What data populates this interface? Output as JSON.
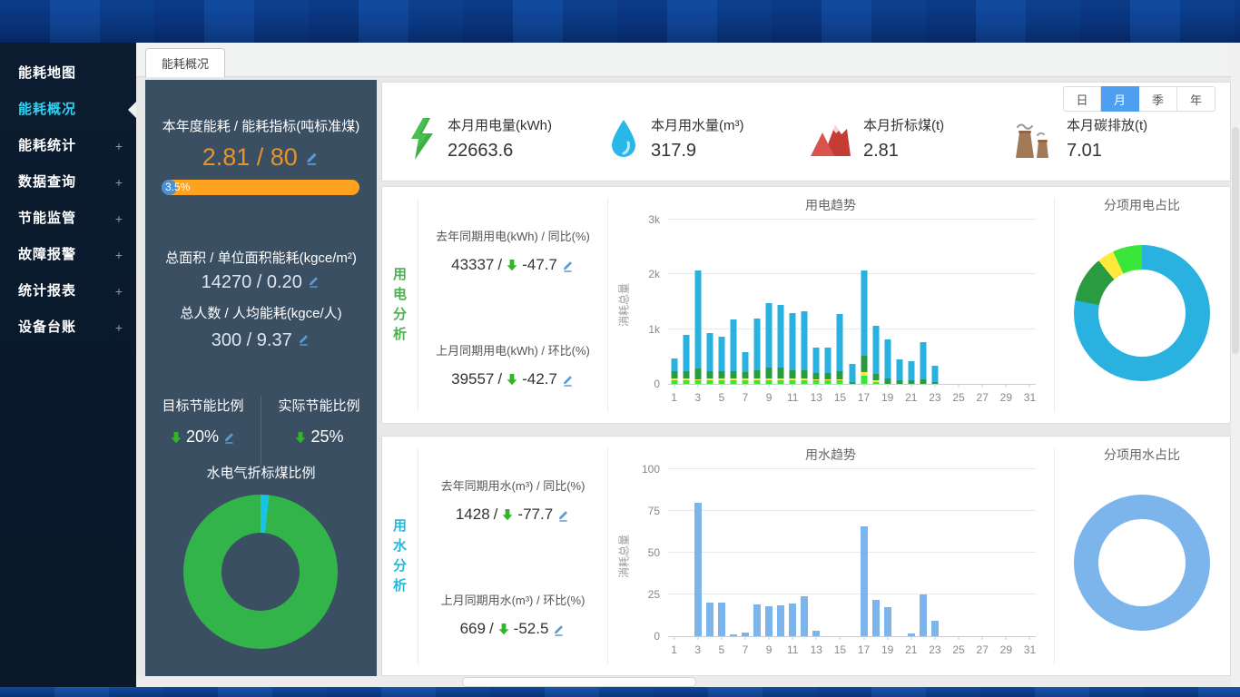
{
  "window": {
    "tab_label": "能耗概况"
  },
  "sidebar": {
    "expand_glyph": "+",
    "items": [
      {
        "label": "能耗地图",
        "expandable": false,
        "active": false
      },
      {
        "label": "能耗概况",
        "expandable": false,
        "active": true
      },
      {
        "label": "能耗统计",
        "expandable": true,
        "active": false
      },
      {
        "label": "数据查询",
        "expandable": true,
        "active": false
      },
      {
        "label": "节能监管",
        "expandable": true,
        "active": false
      },
      {
        "label": "故障报警",
        "expandable": true,
        "active": false
      },
      {
        "label": "统计报表",
        "expandable": true,
        "active": false
      },
      {
        "label": "设备台账",
        "expandable": true,
        "active": false
      }
    ]
  },
  "left_panel": {
    "annual_title": "本年度能耗 / 能耗指标(吨标准煤)",
    "annual_value": "2.81 / 80",
    "progress_label": "3.5%",
    "progress_pct": 3.5,
    "area_title": "总面积 / 单位面积能耗(kgce/m²)",
    "area_value": "14270 / 0.20",
    "people_title": "总人数 / 人均能耗(kgce/人)",
    "people_value": "300 / 9.37",
    "target_label": "目标节能比例",
    "target_value": "20%",
    "actual_label": "实际节能比例",
    "actual_value": "25%",
    "donut_title": "水电气折标煤比例"
  },
  "periods": {
    "options": [
      "日",
      "月",
      "季",
      "年"
    ],
    "active": "月"
  },
  "stats": [
    {
      "icon": "lightning-icon",
      "label": "本月用电量(kWh)",
      "value": "22663.6"
    },
    {
      "icon": "water-drop-icon",
      "label": "本月用水量(m³)",
      "value": "317.9"
    },
    {
      "icon": "mountain-icon",
      "label": "本月折标煤(t)",
      "value": "2.81"
    },
    {
      "icon": "factory-icon",
      "label": "本月碳排放(t)",
      "value": "7.01"
    }
  ],
  "electric": {
    "section_label": "用电分析",
    "yoy_label": "去年同期用电(kWh) / 同比(%)",
    "yoy_value": "43337",
    "yoy_delta": "-47.7",
    "mom_label": "上月同期用电(kWh) / 环比(%)",
    "mom_value": "39557",
    "mom_delta": "-42.7"
  },
  "water": {
    "section_label": "用水分析",
    "yoy_label": "去年同期用水(m³) / 同比(%)",
    "yoy_value": "1428",
    "yoy_delta": "-77.7",
    "mom_label": "上月同期用水(m³) / 环比(%)",
    "mom_value": "669",
    "mom_delta": "-52.5"
  },
  "colors": {
    "accent_blue": "#4e9ff0",
    "progress_orange": "#ffa21f",
    "value_orange": "#e8922a",
    "electric_green": "#4caf50",
    "water_cyan": "#2ab7d8",
    "sidebar_active": "#2fd2f5"
  },
  "chart_data": [
    {
      "id": "electricity_trend",
      "type": "bar",
      "stacked": true,
      "title": "用电趋势",
      "ylabel": "消耗总量",
      "ymax": 3000,
      "yticks": [
        {
          "v": 0,
          "label": "0"
        },
        {
          "v": 1000,
          "label": "1k"
        },
        {
          "v": 2000,
          "label": "2k"
        },
        {
          "v": 3000,
          "label": "3k"
        }
      ],
      "categories": [
        1,
        2,
        3,
        4,
        5,
        6,
        7,
        8,
        9,
        10,
        11,
        12,
        13,
        14,
        15,
        16,
        17,
        18,
        19,
        20,
        21,
        22,
        23,
        24,
        25,
        26,
        27,
        28,
        29,
        30,
        31
      ],
      "series": [
        {
          "name": "segment-1",
          "color": "#39e639",
          "values": [
            70,
            70,
            60,
            70,
            70,
            70,
            70,
            70,
            70,
            70,
            70,
            70,
            60,
            60,
            60,
            0,
            150,
            40,
            0,
            0,
            0,
            0,
            0,
            0,
            0,
            0,
            0,
            0,
            0,
            0,
            0
          ]
        },
        {
          "name": "segment-2",
          "color": "#ffe93c",
          "values": [
            35,
            35,
            30,
            35,
            35,
            35,
            35,
            35,
            35,
            35,
            35,
            35,
            30,
            30,
            30,
            0,
            60,
            30,
            0,
            0,
            0,
            0,
            0,
            0,
            0,
            0,
            0,
            0,
            0,
            0,
            0
          ]
        },
        {
          "name": "segment-3",
          "color": "#2a9b40",
          "values": [
            120,
            130,
            200,
            130,
            120,
            130,
            110,
            150,
            200,
            190,
            150,
            140,
            110,
            110,
            140,
            30,
            310,
            120,
            100,
            70,
            70,
            90,
            40,
            0,
            0,
            0,
            0,
            0,
            0,
            0,
            0
          ]
        },
        {
          "name": "segment-4",
          "color": "#29b2e0",
          "values": [
            245,
            665,
            1790,
            695,
            635,
            935,
            365,
            945,
            1175,
            1155,
            1045,
            1075,
            460,
            460,
            1040,
            330,
            1560,
            870,
            720,
            380,
            350,
            680,
            300,
            0,
            0,
            0,
            0,
            0,
            0,
            0,
            0
          ]
        }
      ]
    },
    {
      "id": "electricity_share",
      "type": "pie",
      "title": "分项用电占比",
      "hole": "#ffffff",
      "slices": [
        {
          "color": "#29b2e0",
          "pct": 78
        },
        {
          "color": "#2a9b40",
          "pct": 11
        },
        {
          "color": "#ffe93c",
          "pct": 4
        },
        {
          "color": "#39e639",
          "pct": 7
        }
      ]
    },
    {
      "id": "water_trend",
      "type": "bar",
      "stacked": false,
      "title": "用水趋势",
      "ylabel": "消耗总量",
      "ymax": 100,
      "yticks": [
        {
          "v": 0,
          "label": "0"
        },
        {
          "v": 25,
          "label": "25"
        },
        {
          "v": 50,
          "label": "50"
        },
        {
          "v": 75,
          "label": "75"
        },
        {
          "v": 100,
          "label": "100"
        }
      ],
      "categories": [
        1,
        2,
        3,
        4,
        5,
        6,
        7,
        8,
        9,
        10,
        11,
        12,
        13,
        14,
        15,
        16,
        17,
        18,
        19,
        20,
        21,
        22,
        23,
        24,
        25,
        26,
        27,
        28,
        29,
        30,
        31
      ],
      "color": "#7cb5ec",
      "values": [
        0,
        0,
        80,
        20,
        20,
        1,
        2,
        19,
        18,
        18.5,
        19.5,
        24,
        3,
        0,
        0,
        0,
        66,
        22,
        17.5,
        0,
        1.5,
        25,
        9,
        0,
        0,
        0,
        0,
        0,
        0,
        0,
        0
      ]
    },
    {
      "id": "water_share",
      "type": "pie",
      "title": "分项用水占比",
      "hole": "#ffffff",
      "slices": [
        {
          "color": "#7cb5ec",
          "pct": 100
        }
      ]
    },
    {
      "id": "energy_mix",
      "type": "pie",
      "title": "水电气折标煤比例",
      "hole": "#3b4f63",
      "slices": [
        {
          "color": "#19c3e6",
          "pct": 1.8
        },
        {
          "color": "#33b44a",
          "pct": 98.2
        }
      ]
    }
  ]
}
